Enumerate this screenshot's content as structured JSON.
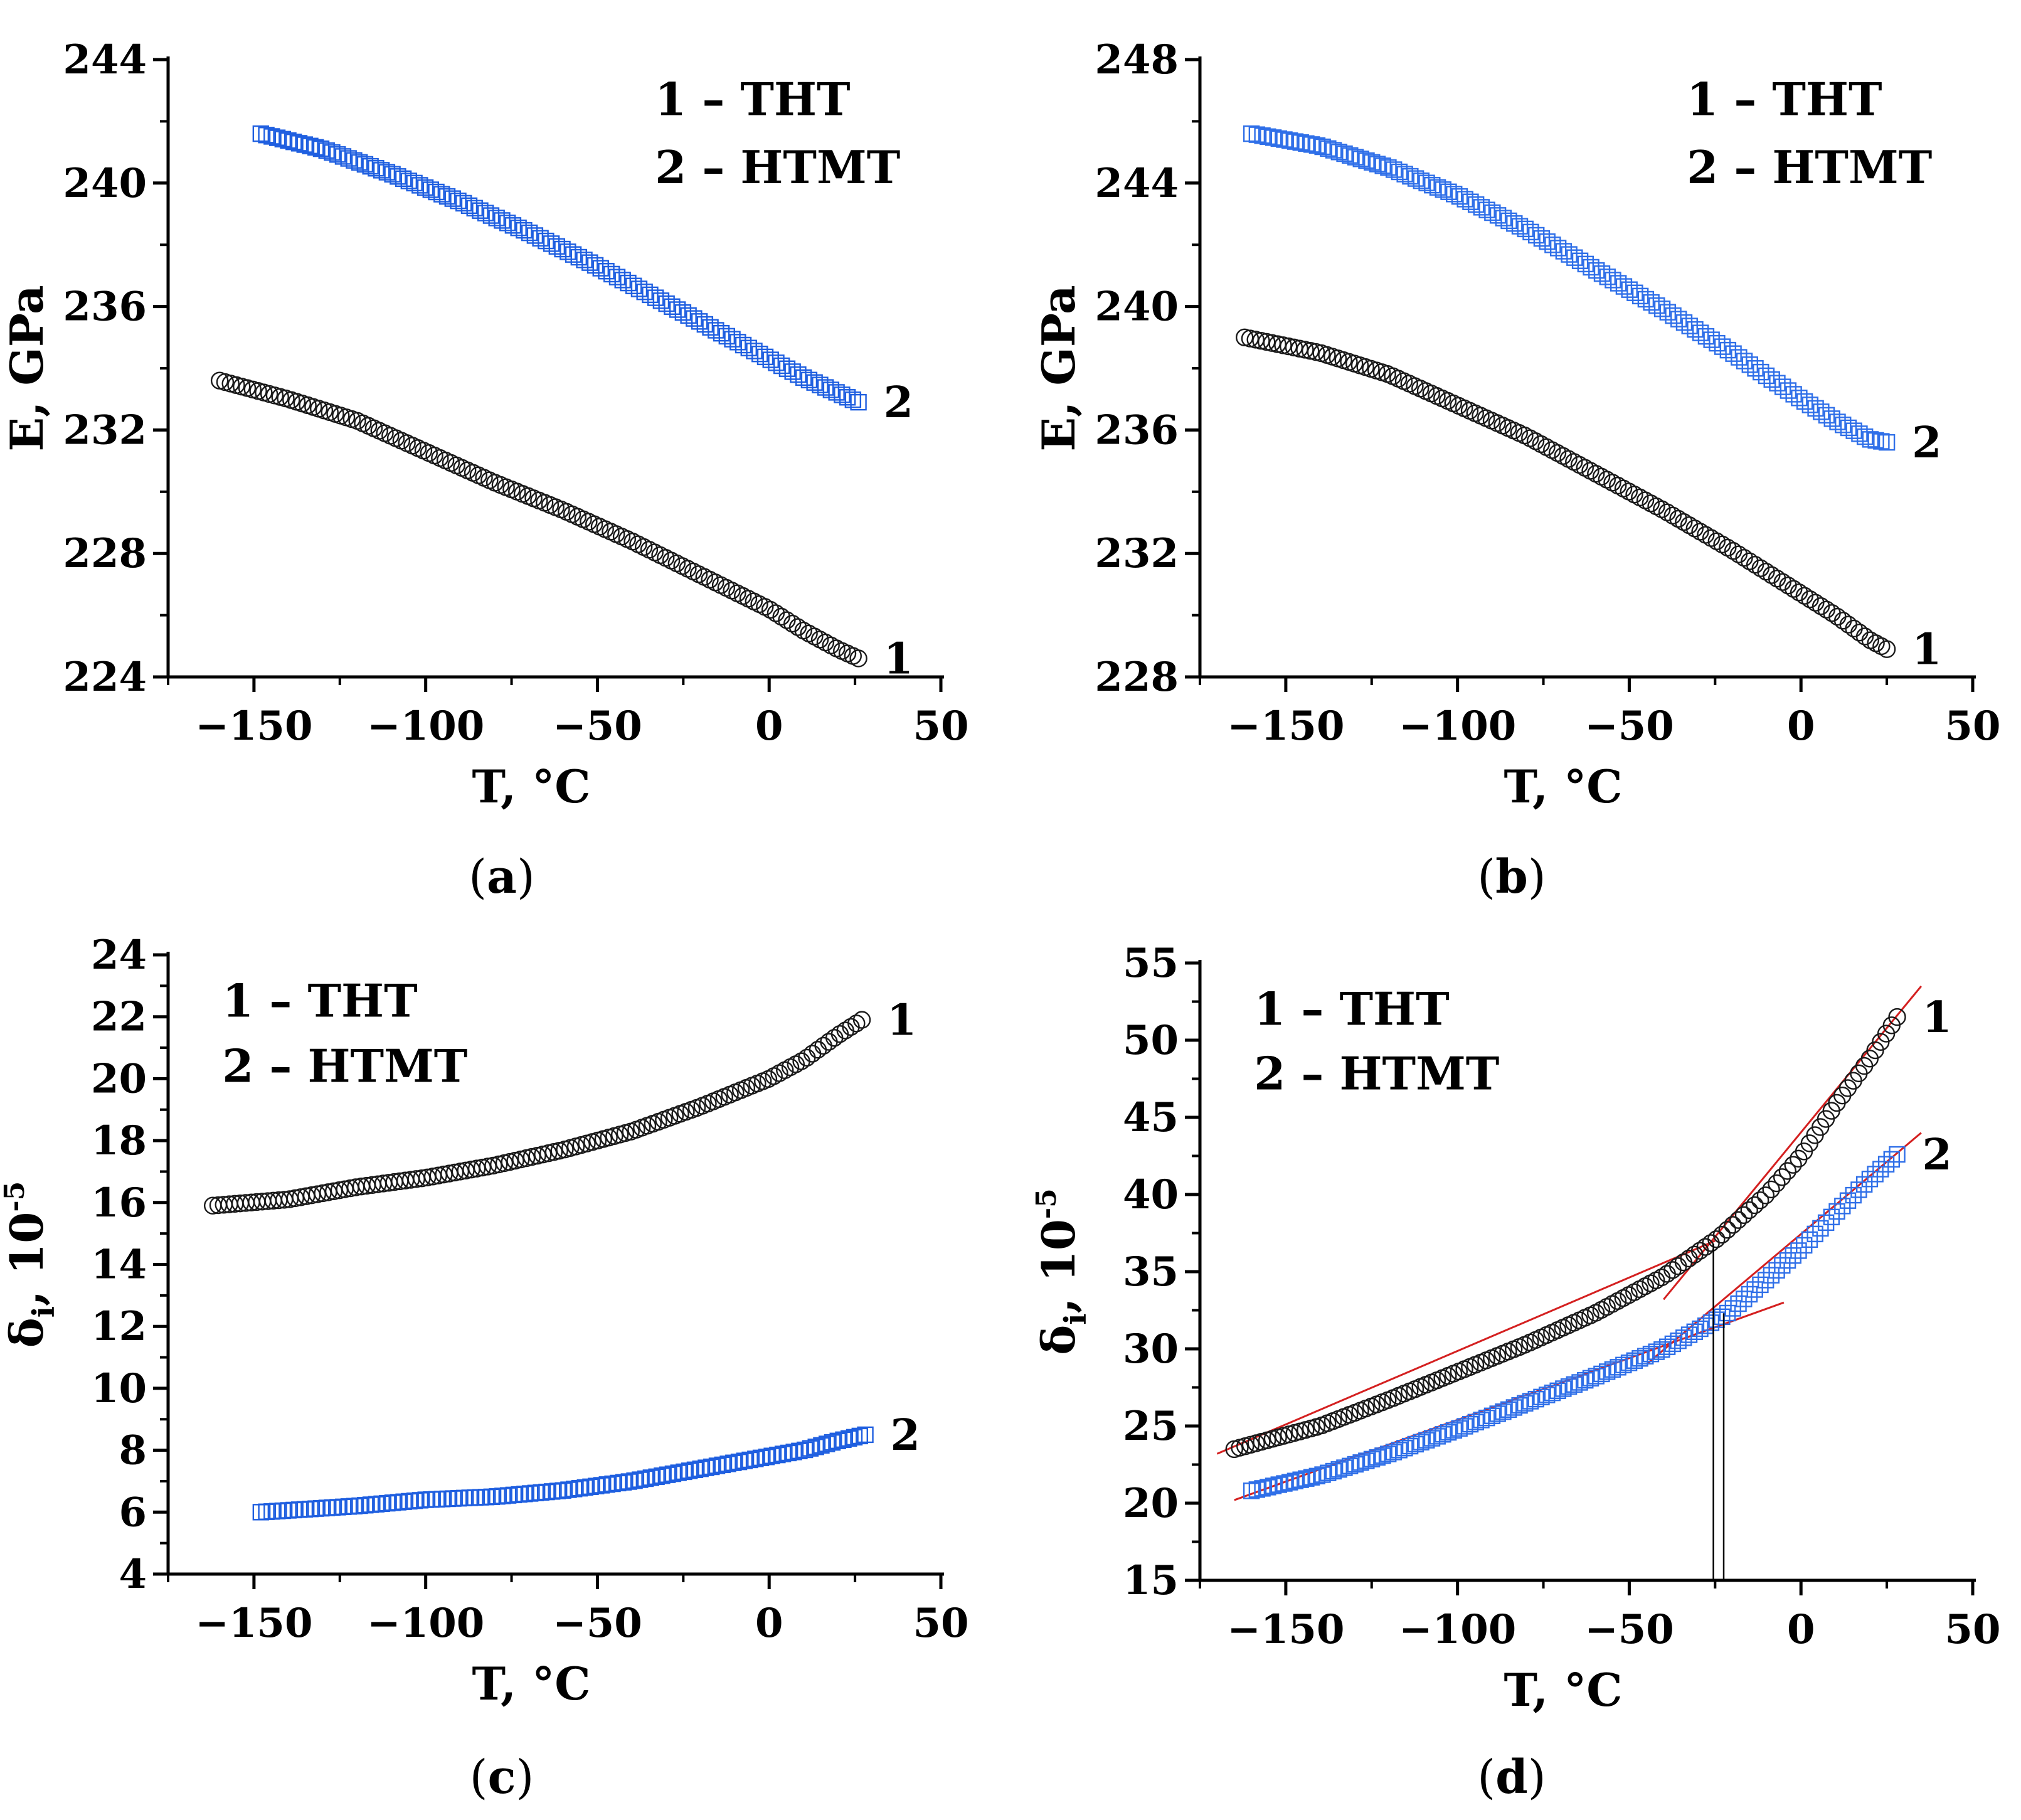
{
  "chart_data": [
    {
      "id": "a",
      "caption": "a",
      "type": "scatter",
      "xlabel": "T, °C",
      "ylabel": "E, GPa",
      "ylabel_sub": "",
      "ylabel_sup": "",
      "xlim": [
        -175,
        50
      ],
      "ylim": [
        224,
        244
      ],
      "xticks": [
        -150,
        -100,
        -50,
        0,
        50
      ],
      "yticks": [
        224,
        228,
        232,
        236,
        240,
        244
      ],
      "xtick_labels": [
        "−150",
        "−100",
        "−50",
        "0",
        "50"
      ],
      "ytick_labels": [
        "224",
        "228",
        "232",
        "236",
        "240",
        "244"
      ],
      "legend": [
        "1 – THT",
        "2 – HTMT"
      ],
      "legend_position": "top-right",
      "series": [
        {
          "name": "1",
          "label": "1",
          "marker": "circle",
          "color": "#1a1a1a",
          "x": [
            -160,
            -140,
            -120,
            -100,
            -80,
            -60,
            -40,
            -20,
            0,
            10,
            20,
            26
          ],
          "y": [
            233.6,
            233.0,
            232.3,
            231.3,
            230.3,
            229.4,
            228.4,
            227.3,
            226.2,
            225.5,
            224.9,
            224.6
          ]
        },
        {
          "name": "2",
          "label": "2",
          "marker": "square",
          "color": "#1f5fe0",
          "x": [
            -148,
            -130,
            -110,
            -90,
            -70,
            -50,
            -30,
            -10,
            10,
            26
          ],
          "y": [
            241.6,
            241.1,
            240.3,
            239.4,
            238.4,
            237.3,
            236.1,
            234.9,
            233.7,
            232.9
          ]
        }
      ]
    },
    {
      "id": "b",
      "caption": "b",
      "type": "scatter",
      "xlabel": "T, °C",
      "ylabel": "E, GPa",
      "ylabel_sub": "",
      "ylabel_sup": "",
      "xlim": [
        -175,
        50
      ],
      "ylim": [
        228,
        248
      ],
      "xticks": [
        -150,
        -100,
        -50,
        0,
        50
      ],
      "yticks": [
        228,
        232,
        236,
        240,
        244,
        248
      ],
      "xtick_labels": [
        "−150",
        "−100",
        "−50",
        "0",
        "50"
      ],
      "ytick_labels": [
        "228",
        "232",
        "236",
        "240",
        "244",
        "248"
      ],
      "legend": [
        "1 – THT",
        "2 – HTMT"
      ],
      "legend_position": "top-right",
      "series": [
        {
          "name": "1",
          "label": "1",
          "marker": "circle",
          "color": "#1a1a1a",
          "x": [
            -162,
            -140,
            -120,
            -100,
            -80,
            -60,
            -40,
            -20,
            0,
            10,
            20,
            25
          ],
          "y": [
            239.0,
            238.5,
            237.8,
            236.8,
            235.8,
            234.6,
            233.4,
            232.1,
            230.7,
            230.0,
            229.2,
            228.9
          ]
        },
        {
          "name": "2",
          "label": "2",
          "marker": "square",
          "color": "#2f6fe8",
          "x": [
            -160,
            -140,
            -120,
            -100,
            -80,
            -60,
            -40,
            -20,
            0,
            10,
            20,
            25
          ],
          "y": [
            245.6,
            245.2,
            244.5,
            243.6,
            242.5,
            241.2,
            239.9,
            238.5,
            237.0,
            236.3,
            235.7,
            235.6
          ]
        }
      ]
    },
    {
      "id": "c",
      "caption": "c",
      "type": "scatter",
      "xlabel": "T, °C",
      "ylabel": "δ",
      "ylabel_sub": "i",
      "ylabel_sup": "-5",
      "xlim": [
        -175,
        50
      ],
      "ylim": [
        4,
        24
      ],
      "xticks": [
        -150,
        -100,
        -50,
        0,
        50
      ],
      "yticks": [
        4,
        6,
        8,
        10,
        12,
        14,
        16,
        18,
        20,
        22,
        24
      ],
      "xtick_labels": [
        "−150",
        "−100",
        "−50",
        "0",
        "50"
      ],
      "ytick_labels": [
        "4",
        "6",
        "8",
        "10",
        "12",
        "14",
        "16",
        "18",
        "20",
        "22",
        "24"
      ],
      "legend": [
        "1 – THT",
        "2 – HTMT"
      ],
      "legend_position": "top-left",
      "series": [
        {
          "name": "1",
          "label": "1",
          "marker": "circle",
          "color": "#1a1a1a",
          "x": [
            -162,
            -140,
            -120,
            -100,
            -80,
            -60,
            -40,
            -20,
            0,
            10,
            20,
            27
          ],
          "y": [
            15.9,
            16.1,
            16.5,
            16.8,
            17.2,
            17.7,
            18.3,
            19.1,
            20.0,
            20.6,
            21.4,
            21.9
          ]
        },
        {
          "name": "2",
          "label": "2",
          "marker": "square",
          "color": "#1f5fe0",
          "x": [
            -148,
            -120,
            -100,
            -80,
            -60,
            -40,
            -20,
            0,
            10,
            20,
            28
          ],
          "y": [
            6.0,
            6.2,
            6.4,
            6.5,
            6.7,
            7.0,
            7.4,
            7.8,
            8.0,
            8.3,
            8.5
          ]
        }
      ]
    },
    {
      "id": "d",
      "caption": "d",
      "type": "scatter",
      "xlabel": "T, °C",
      "ylabel": "δ",
      "ylabel_sub": "i",
      "ylabel_sup": "-5",
      "xlim": [
        -175,
        50
      ],
      "ylim": [
        15,
        55
      ],
      "xticks": [
        -150,
        -100,
        -50,
        0,
        50
      ],
      "yticks": [
        15,
        20,
        25,
        30,
        35,
        40,
        45,
        50,
        55
      ],
      "xtick_labels": [
        "−150",
        "−100",
        "−50",
        "0",
        "50"
      ],
      "ytick_labels": [
        "15",
        "20",
        "25",
        "30",
        "35",
        "40",
        "45",
        "50",
        "55"
      ],
      "legend": [
        "1 – THT",
        "2 – HTMT"
      ],
      "legend_position": "top-left",
      "series": [
        {
          "name": "1",
          "label": "1",
          "marker": "circle",
          "color": "#1a1a1a",
          "x": [
            -165,
            -140,
            -120,
            -100,
            -80,
            -60,
            -40,
            -24,
            -10,
            0,
            10,
            20,
            28
          ],
          "y": [
            23.5,
            25.0,
            26.7,
            28.5,
            30.3,
            32.3,
            34.7,
            37.2,
            40.0,
            42.5,
            45.8,
            48.8,
            51.5
          ]
        },
        {
          "name": "2",
          "label": "2",
          "marker": "square",
          "color": "#2f6fe8",
          "x": [
            -160,
            -140,
            -120,
            -100,
            -80,
            -60,
            -40,
            -22,
            -10,
            0,
            10,
            20,
            28
          ],
          "y": [
            20.8,
            21.8,
            23.2,
            24.8,
            26.5,
            28.2,
            30.0,
            32.2,
            34.5,
            36.5,
            38.8,
            41.0,
            42.6
          ]
        }
      ],
      "fit_lines": [
        {
          "x": [
            -170,
            -25
          ],
          "y": [
            23.2,
            37.0
          ]
        },
        {
          "x": [
            -40,
            35
          ],
          "y": [
            33.2,
            53.5
          ]
        },
        {
          "x": [
            -165,
            -5
          ],
          "y": [
            20.2,
            33.0
          ]
        },
        {
          "x": [
            -45,
            35
          ],
          "y": [
            29.0,
            44.0
          ]
        }
      ],
      "vertical_lines": [
        -25.5,
        -22.5
      ]
    }
  ]
}
